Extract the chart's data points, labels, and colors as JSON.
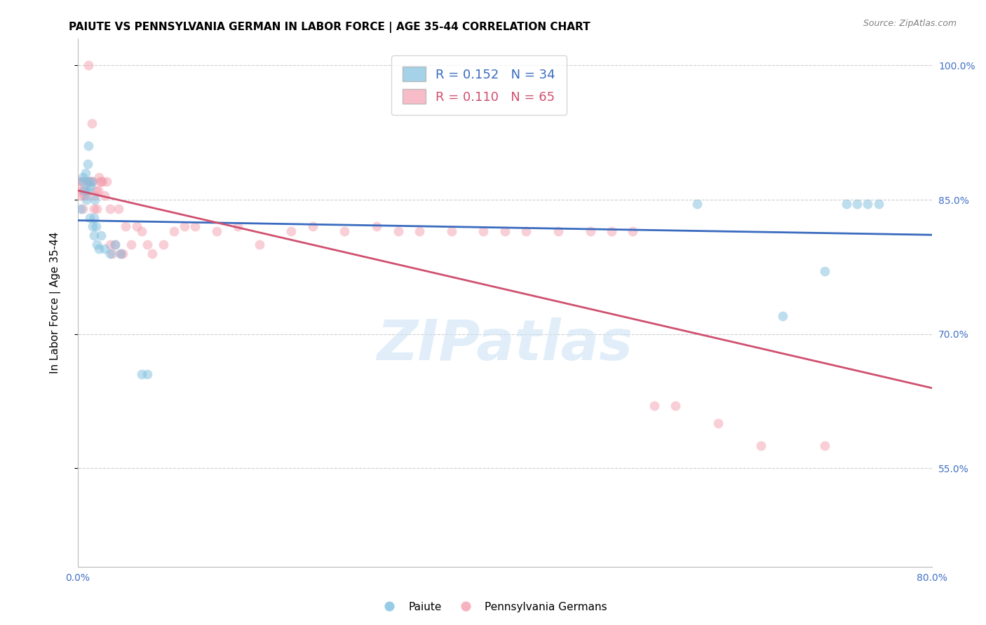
{
  "title": "PAIUTE VS PENNSYLVANIA GERMAN IN LABOR FORCE | AGE 35-44 CORRELATION CHART",
  "source": "Source: ZipAtlas.com",
  "ylabel": "In Labor Force | Age 35-44",
  "xlim": [
    0.0,
    0.8
  ],
  "ylim": [
    0.44,
    1.03
  ],
  "yticks": [
    0.55,
    0.7,
    0.85,
    1.0
  ],
  "ytick_labels": [
    "55.0%",
    "70.0%",
    "85.0%",
    "100.0%"
  ],
  "xticks": [
    0.0,
    0.1,
    0.2,
    0.3,
    0.4,
    0.5,
    0.6,
    0.7,
    0.8
  ],
  "xtick_labels": [
    "0.0%",
    "",
    "",
    "",
    "",
    "",
    "",
    "",
    "80.0%"
  ],
  "paiute_color": "#7fbfdf",
  "pa_german_color": "#f4a0b0",
  "trend_blue": "#3a6bbf",
  "trend_pink": "#d05070",
  "background_color": "#ffffff",
  "grid_color": "#c8c8c8",
  "watermark": "ZIPatlas",
  "axis_color": "#4472c4",
  "paiute_x": [
    0.003,
    0.005,
    0.005,
    0.006,
    0.007,
    0.008,
    0.009,
    0.009,
    0.01,
    0.01,
    0.011,
    0.012,
    0.013,
    0.014,
    0.015,
    0.015,
    0.016,
    0.017,
    0.018,
    0.02,
    0.022,
    0.025,
    0.03,
    0.035,
    0.04,
    0.06,
    0.065,
    0.58,
    0.66,
    0.7,
    0.72,
    0.73,
    0.74,
    0.75
  ],
  "paiute_y": [
    0.84,
    0.875,
    0.87,
    0.86,
    0.88,
    0.85,
    0.87,
    0.89,
    0.86,
    0.91,
    0.83,
    0.865,
    0.87,
    0.82,
    0.81,
    0.83,
    0.85,
    0.82,
    0.8,
    0.795,
    0.81,
    0.795,
    0.79,
    0.8,
    0.79,
    0.655,
    0.655,
    0.845,
    0.72,
    0.77,
    0.845,
    0.845,
    0.845,
    0.845
  ],
  "pa_german_x": [
    0.001,
    0.002,
    0.003,
    0.004,
    0.005,
    0.005,
    0.006,
    0.007,
    0.008,
    0.009,
    0.01,
    0.011,
    0.012,
    0.013,
    0.014,
    0.015,
    0.016,
    0.017,
    0.018,
    0.019,
    0.02,
    0.021,
    0.022,
    0.023,
    0.025,
    0.027,
    0.03,
    0.03,
    0.032,
    0.035,
    0.038,
    0.04,
    0.042,
    0.045,
    0.05,
    0.055,
    0.06,
    0.065,
    0.07,
    0.08,
    0.09,
    0.1,
    0.11,
    0.13,
    0.15,
    0.17,
    0.2,
    0.22,
    0.25,
    0.28,
    0.3,
    0.32,
    0.35,
    0.38,
    0.4,
    0.42,
    0.45,
    0.48,
    0.5,
    0.52,
    0.54,
    0.56,
    0.6,
    0.64,
    0.7
  ],
  "pa_german_y": [
    0.86,
    0.87,
    0.855,
    0.87,
    0.84,
    0.86,
    0.855,
    0.86,
    0.855,
    0.87,
    1.0,
    0.87,
    0.87,
    0.935,
    0.87,
    0.84,
    0.855,
    0.86,
    0.84,
    0.86,
    0.875,
    0.87,
    0.87,
    0.87,
    0.855,
    0.87,
    0.84,
    0.8,
    0.79,
    0.8,
    0.84,
    0.79,
    0.79,
    0.82,
    0.8,
    0.82,
    0.815,
    0.8,
    0.79,
    0.8,
    0.815,
    0.82,
    0.82,
    0.815,
    0.82,
    0.8,
    0.815,
    0.82,
    0.815,
    0.82,
    0.815,
    0.815,
    0.815,
    0.815,
    0.815,
    0.815,
    0.815,
    0.815,
    0.815,
    0.815,
    0.62,
    0.62,
    0.6,
    0.575,
    0.575
  ],
  "marker_size": 100,
  "title_fontsize": 11,
  "axis_label_fontsize": 11,
  "tick_fontsize": 10,
  "legend_fontsize": 13
}
